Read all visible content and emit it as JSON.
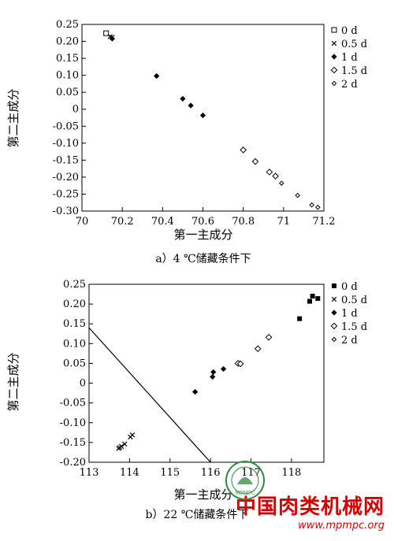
{
  "chart_data": [
    {
      "type": "scatter",
      "xlabel": "第一主成分",
      "ylabel": "第二主成分",
      "caption": "a）4 ℃储藏条件下",
      "xlim": [
        70,
        71.2
      ],
      "ylim": [
        -0.3,
        0.25
      ],
      "xticks": [
        "70",
        "70.2",
        "70.4",
        "70.6",
        "70.8",
        "71",
        "71.2"
      ],
      "xtick_values": [
        70,
        70.2,
        70.4,
        70.6,
        70.8,
        71,
        71.2
      ],
      "yticks": [
        "0.25",
        "0.20",
        "0.15",
        "0.10",
        "0.05",
        "0",
        "-0.05",
        "-0.10",
        "-0.15",
        "-0.20",
        "-0.25",
        "-0.30"
      ],
      "ytick_values": [
        0.25,
        0.2,
        0.15,
        0.1,
        0.05,
        0,
        -0.05,
        -0.1,
        -0.15,
        -0.2,
        -0.25,
        -0.3
      ],
      "legend_position": "right",
      "series": [
        {
          "name": "0 d",
          "marker": "square-open",
          "x": [
            70.12
          ],
          "y": [
            0.224
          ]
        },
        {
          "name": "0.5 d",
          "marker": "cross",
          "x": [
            70.14,
            70.15
          ],
          "y": [
            0.214,
            0.212
          ]
        },
        {
          "name": "1 d",
          "marker": "diamond-filled",
          "x": [
            70.15,
            70.37,
            70.5,
            70.54,
            70.6
          ],
          "y": [
            0.208,
            0.098,
            0.031,
            0.011,
            -0.018
          ]
        },
        {
          "name": "1.5 d",
          "marker": "diamond-open",
          "x": [
            70.8,
            70.86,
            70.93,
            70.96
          ],
          "y": [
            -0.12,
            -0.154,
            -0.185,
            -0.197
          ]
        },
        {
          "name": "2 d",
          "marker": "diamond-small",
          "x": [
            70.99,
            71.07,
            71.14,
            71.17
          ],
          "y": [
            -0.218,
            -0.254,
            -0.282,
            -0.289
          ]
        }
      ]
    },
    {
      "type": "scatter",
      "xlabel": "第一主成分",
      "ylabel": "第二主成分",
      "caption": "b）22 ℃储藏条件下",
      "xlim": [
        113,
        118.8
      ],
      "ylim": [
        -0.2,
        0.25
      ],
      "xticks": [
        "113",
        "114",
        "115",
        "116",
        "117",
        "118"
      ],
      "xtick_values": [
        113,
        114,
        115,
        116,
        117,
        118
      ],
      "yticks": [
        "0.25",
        "0.20",
        "0.15",
        "0.10",
        "0.05",
        "0",
        "-0.05",
        "-0.10",
        "-0.15",
        "-0.20"
      ],
      "ytick_values": [
        0.25,
        0.2,
        0.15,
        0.1,
        0.05,
        0,
        -0.05,
        -0.1,
        -0.15,
        -0.2
      ],
      "legend_position": "top-right",
      "line": {
        "x": [
          113,
          116
        ],
        "y": [
          0.14,
          -0.2
        ]
      },
      "series": [
        {
          "name": "0 d",
          "marker": "square-filled",
          "x": [
            118.2,
            118.45,
            118.52,
            118.65
          ],
          "y": [
            0.163,
            0.207,
            0.22,
            0.214
          ]
        },
        {
          "name": "0.5 d",
          "marker": "cross",
          "x": [
            113.73,
            113.76,
            113.8,
            113.88,
            114.02,
            114.07
          ],
          "y": [
            -0.165,
            -0.163,
            -0.16,
            -0.154,
            -0.136,
            -0.131
          ]
        },
        {
          "name": "1 d",
          "marker": "diamond-filled",
          "x": [
            115.62,
            116.05,
            116.07,
            116.32
          ],
          "y": [
            -0.022,
            0.016,
            0.028,
            0.036
          ]
        },
        {
          "name": "1.5 d",
          "marker": "diamond-open",
          "x": [
            116.68,
            116.74,
            117.17,
            117.44
          ],
          "y": [
            0.05,
            0.049,
            0.087,
            0.116
          ]
        },
        {
          "name": "2 d",
          "marker": "diamond-small",
          "x": [],
          "y": []
        }
      ]
    }
  ],
  "watermark": {
    "title": "中国肉类机械网",
    "url": "www.mpmpc.org",
    "logo_text": "MPMPC"
  }
}
